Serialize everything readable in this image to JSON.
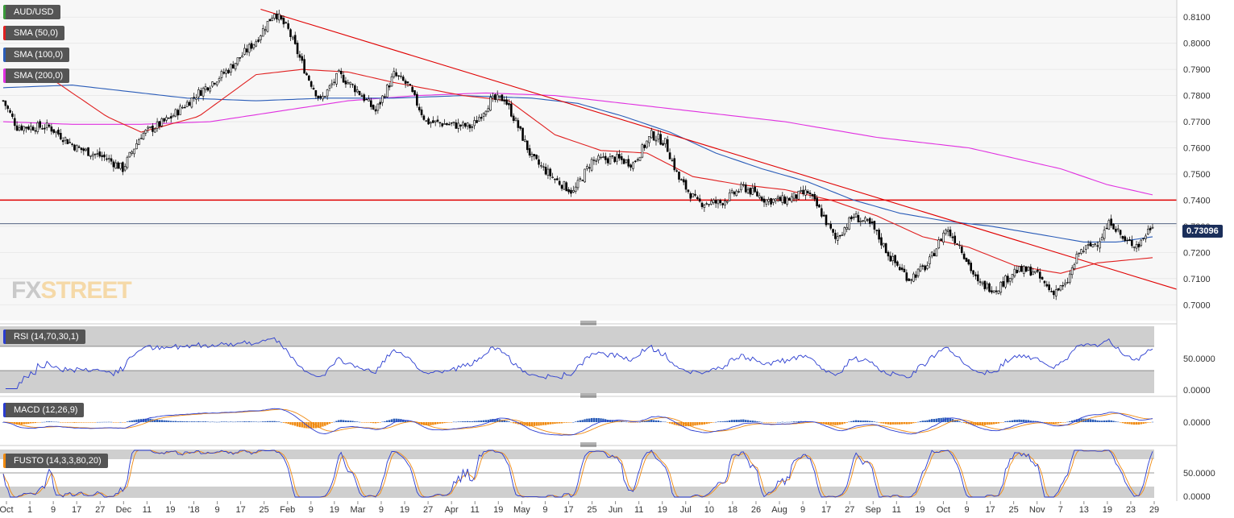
{
  "legend": {
    "symbol": "AUD/USD",
    "sma50": "SMA (50,0)",
    "sma100": "SMA (100,0)",
    "sma200": "SMA (200,0)",
    "rsi": "RSI (14,70,30,1)",
    "macd": "MACD (12,26,9)",
    "fusto": "FUSTO (14,3,3,80,20)"
  },
  "colors": {
    "sma50": "#e02020",
    "sma100": "#2a5cb8",
    "sma200": "#e030e0",
    "candle_up": "#ffffff",
    "candle_down": "#000000",
    "rsi_line": "#2a3cd0",
    "macd_line": "#2a3cd0",
    "signal_line": "#f08a10",
    "hist_pos": "#2a5cb8",
    "hist_neg": "#f08a10",
    "resistance": "#e00000",
    "trendline": "#e00000",
    "price_line": "#1a2e5a"
  },
  "watermark": {
    "fx": "FX",
    "street": "STREET"
  },
  "current_price_label": "0.73096",
  "chart_data": {
    "type": "candlestick",
    "price_axis": {
      "ticks": [
        "0.8100",
        "0.8000",
        "0.7900",
        "0.7800",
        "0.7700",
        "0.7600",
        "0.7500",
        "0.7400",
        "0.7300",
        "0.7200",
        "0.7100",
        "0.7000"
      ],
      "ylim": [
        0.697,
        0.815
      ]
    },
    "x_ticks": [
      "Oct",
      "1",
      "9",
      "17",
      "27",
      "Dec",
      "11",
      "19",
      "'18",
      "9",
      "17",
      "25",
      "Feb",
      "9",
      "19",
      "Mar",
      "9",
      "19",
      "27",
      "Apr",
      "11",
      "19",
      "May",
      "9",
      "17",
      "25",
      "Jun",
      "11",
      "19",
      "Jul",
      "10",
      "18",
      "26",
      "Aug",
      "9",
      "17",
      "27",
      "Sep",
      "11",
      "19",
      "Oct",
      "9",
      "17",
      "25",
      "Nov",
      "7",
      "13",
      "19",
      "23",
      "29"
    ],
    "resistance_level": 0.74,
    "current_price": 0.73096,
    "close_keypoints": [
      [
        0,
        0.778
      ],
      [
        6,
        0.768
      ],
      [
        20,
        0.768
      ],
      [
        32,
        0.76
      ],
      [
        45,
        0.756
      ],
      [
        52,
        0.752
      ],
      [
        60,
        0.765
      ],
      [
        72,
        0.771
      ],
      [
        85,
        0.781
      ],
      [
        98,
        0.79
      ],
      [
        110,
        0.801
      ],
      [
        118,
        0.812
      ],
      [
        124,
        0.805
      ],
      [
        132,
        0.788
      ],
      [
        138,
        0.778
      ],
      [
        146,
        0.788
      ],
      [
        154,
        0.782
      ],
      [
        162,
        0.774
      ],
      [
        170,
        0.788
      ],
      [
        176,
        0.784
      ],
      [
        184,
        0.77
      ],
      [
        194,
        0.769
      ],
      [
        204,
        0.768
      ],
      [
        212,
        0.778
      ],
      [
        218,
        0.779
      ],
      [
        224,
        0.768
      ],
      [
        230,
        0.756
      ],
      [
        240,
        0.748
      ],
      [
        248,
        0.743
      ],
      [
        256,
        0.755
      ],
      [
        266,
        0.756
      ],
      [
        274,
        0.754
      ],
      [
        282,
        0.765
      ],
      [
        288,
        0.762
      ],
      [
        294,
        0.748
      ],
      [
        302,
        0.739
      ],
      [
        312,
        0.739
      ],
      [
        322,
        0.745
      ],
      [
        332,
        0.74
      ],
      [
        340,
        0.74
      ],
      [
        350,
        0.743
      ],
      [
        356,
        0.735
      ],
      [
        362,
        0.725
      ],
      [
        370,
        0.734
      ],
      [
        378,
        0.73
      ],
      [
        386,
        0.718
      ],
      [
        394,
        0.71
      ],
      [
        402,
        0.715
      ],
      [
        410,
        0.729
      ],
      [
        416,
        0.723
      ],
      [
        424,
        0.708
      ],
      [
        432,
        0.706
      ],
      [
        440,
        0.713
      ],
      [
        448,
        0.713
      ],
      [
        456,
        0.705
      ],
      [
        462,
        0.707
      ],
      [
        468,
        0.72
      ],
      [
        476,
        0.724
      ],
      [
        482,
        0.732
      ],
      [
        488,
        0.724
      ],
      [
        494,
        0.723
      ],
      [
        500,
        0.731
      ]
    ],
    "sma50_keypoints": [
      [
        20,
        0.787
      ],
      [
        45,
        0.772
      ],
      [
        60,
        0.766
      ],
      [
        85,
        0.772
      ],
      [
        110,
        0.788
      ],
      [
        130,
        0.79
      ],
      [
        150,
        0.789
      ],
      [
        170,
        0.785
      ],
      [
        200,
        0.78
      ],
      [
        220,
        0.778
      ],
      [
        240,
        0.765
      ],
      [
        260,
        0.759
      ],
      [
        280,
        0.758
      ],
      [
        300,
        0.749
      ],
      [
        320,
        0.746
      ],
      [
        340,
        0.744
      ],
      [
        360,
        0.74
      ],
      [
        380,
        0.734
      ],
      [
        400,
        0.726
      ],
      [
        420,
        0.722
      ],
      [
        440,
        0.715
      ],
      [
        460,
        0.712
      ],
      [
        476,
        0.716
      ],
      [
        500,
        0.718
      ]
    ],
    "sma100_keypoints": [
      [
        0,
        0.783
      ],
      [
        30,
        0.784
      ],
      [
        60,
        0.781
      ],
      [
        80,
        0.779
      ],
      [
        110,
        0.778
      ],
      [
        140,
        0.779
      ],
      [
        170,
        0.779
      ],
      [
        200,
        0.78
      ],
      [
        230,
        0.779
      ],
      [
        250,
        0.777
      ],
      [
        270,
        0.772
      ],
      [
        290,
        0.766
      ],
      [
        310,
        0.758
      ],
      [
        330,
        0.752
      ],
      [
        350,
        0.747
      ],
      [
        370,
        0.74
      ],
      [
        390,
        0.735
      ],
      [
        410,
        0.732
      ],
      [
        430,
        0.73
      ],
      [
        450,
        0.727
      ],
      [
        470,
        0.724
      ],
      [
        485,
        0.724
      ],
      [
        500,
        0.726
      ]
    ],
    "sma200_keypoints": [
      [
        0,
        0.77
      ],
      [
        30,
        0.769
      ],
      [
        60,
        0.769
      ],
      [
        90,
        0.77
      ],
      [
        120,
        0.774
      ],
      [
        150,
        0.778
      ],
      [
        180,
        0.78
      ],
      [
        210,
        0.781
      ],
      [
        240,
        0.78
      ],
      [
        260,
        0.778
      ],
      [
        280,
        0.776
      ],
      [
        300,
        0.774
      ],
      [
        320,
        0.772
      ],
      [
        340,
        0.77
      ],
      [
        360,
        0.767
      ],
      [
        380,
        0.764
      ],
      [
        400,
        0.762
      ],
      [
        420,
        0.76
      ],
      [
        440,
        0.756
      ],
      [
        460,
        0.752
      ],
      [
        480,
        0.746
      ],
      [
        500,
        0.742
      ]
    ],
    "trendline": {
      "start": [
        112,
        0.813
      ],
      "end": [
        500,
        0.709
      ]
    },
    "panels": [
      {
        "name": "RSI (14,70,30,1)",
        "ticks": [
          "50.0000",
          "0.0000"
        ],
        "levels": [
          70,
          30
        ]
      },
      {
        "name": "MACD (12,26,9)",
        "ticks": [
          "0.0000"
        ]
      },
      {
        "name": "FUSTO (14,3,3,80,20)",
        "ticks": [
          "50.0000",
          "0.0000"
        ],
        "levels": [
          80,
          20
        ]
      }
    ]
  }
}
